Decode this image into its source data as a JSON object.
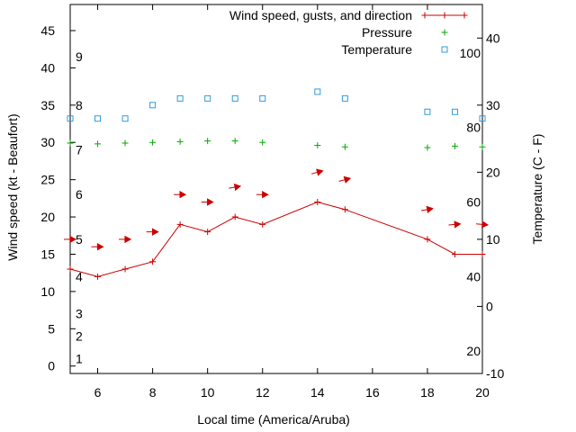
{
  "chart_data": {
    "type": "line",
    "xlabel": "Local time (America/Aruba)",
    "ylabel": "Wind speed (kt - Beaufort)",
    "y2label": "Temperature (C - F)",
    "xlim": [
      5,
      20
    ],
    "ylim": [
      -1,
      48.5
    ],
    "y2lim": [
      -10,
      45
    ],
    "xticks": [
      6,
      8,
      10,
      12,
      14,
      16,
      18,
      20
    ],
    "xtick_labels": [
      "6",
      "8",
      "10",
      "12",
      "14",
      "16",
      "18",
      "20"
    ],
    "yticks": [
      0,
      5,
      10,
      15,
      20,
      25,
      30,
      35,
      40,
      45
    ],
    "ytick_labels": [
      "0",
      "5",
      "10",
      "15",
      "20",
      "25",
      "30",
      "35",
      "40",
      "45"
    ],
    "y2ticks": [
      -10,
      0,
      10,
      20,
      30,
      40
    ],
    "y2tick_labels": [
      "-10",
      "0",
      "10",
      "20",
      "30",
      "40"
    ],
    "beaufort": {
      "values": [
        1,
        2,
        3,
        4,
        5,
        6,
        7,
        8,
        9
      ],
      "labels": [
        "1",
        "2",
        "3",
        "4",
        "5",
        "6",
        "7",
        "8",
        "9"
      ],
      "kt": [
        1,
        4,
        7,
        12,
        17,
        23,
        29,
        35,
        41.5
      ]
    },
    "fahrenheit": {
      "labels": [
        "20",
        "40",
        "60",
        "80",
        "100"
      ],
      "celsius": [
        -6.67,
        4.44,
        15.56,
        26.67,
        37.78
      ]
    },
    "legend_position": "top-right",
    "series": [
      {
        "name": "Wind speed, gusts, and direction",
        "color": "#cc0000",
        "marker": "plus",
        "x": [
          5,
          6,
          7,
          8,
          9,
          10,
          11,
          12,
          14,
          15,
          18,
          19,
          20
        ],
        "values": [
          13,
          12,
          13,
          14,
          19,
          18,
          20,
          19,
          22,
          21,
          17,
          15,
          15
        ],
        "gusts_x": [
          5,
          6,
          7,
          8,
          9,
          10,
          11,
          12,
          14,
          15,
          18,
          19,
          20
        ],
        "gusts": [
          17,
          16,
          17,
          18,
          23,
          22,
          24,
          23,
          26,
          25,
          21,
          19,
          19
        ],
        "direction_deg": [
          90,
          90,
          90,
          90,
          90,
          90,
          80,
          90,
          75,
          75,
          80,
          85,
          95
        ]
      },
      {
        "name": "Pressure",
        "color": "#00aa00",
        "marker": "plus",
        "x": [
          5,
          6,
          7,
          8,
          9,
          10,
          11,
          12,
          14,
          15,
          18,
          19,
          20
        ],
        "values": [
          29.9,
          29.8,
          29.9,
          30.0,
          30.1,
          30.2,
          30.2,
          30.0,
          29.6,
          29.4,
          29.3,
          29.5,
          29.4
        ]
      },
      {
        "name": "Temperature",
        "color": "#3399dd",
        "marker": "square",
        "axis": "y2",
        "x": [
          5,
          6,
          7,
          9,
          10,
          11,
          12,
          14,
          15,
          18,
          19,
          20
        ],
        "values": [
          28,
          28,
          28,
          31,
          31,
          31,
          31,
          32,
          31,
          29,
          29,
          28
        ],
        "x_extra": [
          8
        ],
        "values_extra": [
          30
        ]
      }
    ]
  }
}
